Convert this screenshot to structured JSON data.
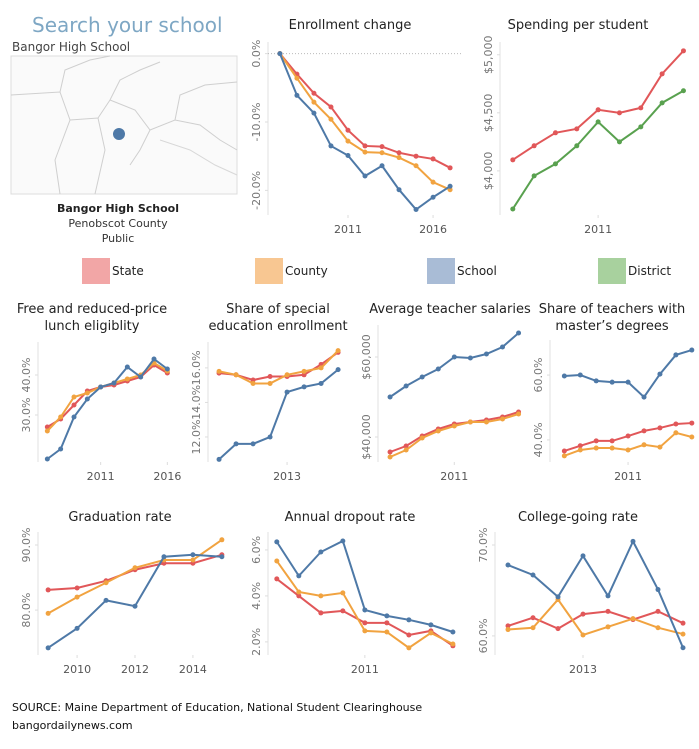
{
  "header": {
    "title": "Search your school",
    "school": "Bangor High School"
  },
  "map": {
    "school": "Bangor High School",
    "county": "Penobscot County",
    "type": "Public"
  },
  "legend": [
    {
      "name": "State",
      "color": "#e15759",
      "swatch": "#f2a6a6"
    },
    {
      "name": "County",
      "color": "#f1a340",
      "swatch": "#f8c792"
    },
    {
      "name": "School",
      "color": "#4e79a7",
      "swatch": "#a9bcd6"
    },
    {
      "name": "District",
      "color": "#59a14f",
      "swatch": "#a8d19e"
    }
  ],
  "chart_data": [
    {
      "type": "line",
      "title": "Enrollment change",
      "x": [
        2007,
        2008,
        2009,
        2010,
        2011,
        2012,
        2013,
        2014,
        2015,
        2016,
        2017
      ],
      "series": [
        {
          "name": "State",
          "values": [
            0,
            -3,
            -5.8,
            -7.8,
            -11.2,
            -13.5,
            -13.6,
            -14.5,
            -15,
            -15.4,
            -16.7
          ]
        },
        {
          "name": "County",
          "values": [
            0,
            -3.6,
            -7.1,
            -9.6,
            -12.8,
            -14.4,
            -14.5,
            -15.2,
            -16.4,
            -18.8,
            -19.9
          ]
        },
        {
          "name": "School",
          "values": [
            0,
            -6.1,
            -8.7,
            -13.5,
            -14.9,
            -17.9,
            -16.4,
            -19.9,
            -22.8,
            -21,
            -19.4
          ]
        }
      ],
      "xlim": [
        2006.3,
        2017.7
      ],
      "xticks": [
        2011,
        2016
      ],
      "ylim": [
        -23.6,
        1.7
      ],
      "yticks": [
        {
          "value": 0,
          "label": "0.0%"
        },
        {
          "value": -10,
          "label": "-10.0%"
        },
        {
          "value": -20,
          "label": "-20.0%"
        }
      ],
      "zero_line": true
    },
    {
      "type": "line",
      "title": "Spending per student",
      "x": [
        2007,
        2008,
        2009,
        2010,
        2011,
        2012,
        2013,
        2014,
        2015
      ],
      "series": [
        {
          "name": "State",
          "values": [
            4095,
            4216,
            4328,
            4362,
            4526,
            4500,
            4543,
            4836,
            5034
          ]
        },
        {
          "name": "District",
          "values": [
            3672,
            3957,
            4060,
            4216,
            4422,
            4250,
            4379,
            4586,
            4690
          ]
        }
      ],
      "xlim": [
        2006.4,
        2015.4
      ],
      "xticks": [
        2011
      ],
      "ylim": [
        3620,
        5110
      ],
      "yticks": [
        {
          "value": 5000,
          "label": "$5,000"
        },
        {
          "value": 4500,
          "label": "$4,500"
        },
        {
          "value": 4000,
          "label": "$4,000"
        }
      ]
    },
    {
      "type": "line",
      "title": "Free and reduced-price lunch eligiblity",
      "x": [
        2007,
        2008,
        2009,
        2010,
        2011,
        2012,
        2013,
        2014,
        2015,
        2016
      ],
      "series": [
        {
          "name": "State",
          "values": [
            27,
            29,
            32.5,
            36,
            37,
            37.5,
            38.5,
            39.5,
            42.5,
            40.5
          ]
        },
        {
          "name": "County",
          "values": [
            26,
            29.5,
            34.5,
            35.5,
            37,
            38,
            39,
            40,
            43,
            41
          ]
        },
        {
          "name": "School",
          "values": [
            19,
            21.5,
            29.5,
            34,
            37,
            38,
            42,
            39.5,
            44,
            41.5
          ]
        }
      ],
      "xlim": [
        2006.3,
        2016.8
      ],
      "xticks": [
        2011,
        2016
      ],
      "ylim": [
        18.25,
        48.25
      ],
      "yticks": [
        {
          "value": 40,
          "label": "40.0%"
        },
        {
          "value": 30,
          "label": "30.0%"
        }
      ]
    },
    {
      "type": "line",
      "title": "Share of special education enrollment",
      "x": [
        2009,
        2010,
        2011,
        2012,
        2013,
        2014,
        2015,
        2016
      ],
      "series": [
        {
          "name": "State",
          "values": [
            15.7,
            15.6,
            15.3,
            15.5,
            15.5,
            15.6,
            16.2,
            16.9
          ]
        },
        {
          "name": "County",
          "values": [
            15.8,
            15.6,
            15.1,
            15.1,
            15.6,
            15.8,
            16,
            17
          ]
        },
        {
          "name": "School",
          "values": [
            10.7,
            11.6,
            11.6,
            12,
            14.6,
            14.9,
            15.1,
            15.9
          ]
        }
      ],
      "xlim": [
        2008.35,
        2016.7
      ],
      "xticks": [
        2013
      ],
      "ylim": [
        10.55,
        17.5
      ],
      "yticks": [
        {
          "value": 16,
          "label": "16.0%"
        },
        {
          "value": 14,
          "label": "14.0%"
        },
        {
          "value": 12,
          "label": "12.0%"
        }
      ]
    },
    {
      "type": "line",
      "title": "Average teacher salaries",
      "x": [
        2007,
        2008,
        2009,
        2010,
        2011,
        2012,
        2013,
        2014,
        2015
      ],
      "series": [
        {
          "name": "State",
          "values": [
            36250,
            37750,
            40250,
            42000,
            43250,
            43750,
            44250,
            45000,
            46250
          ]
        },
        {
          "name": "County",
          "values": [
            35000,
            36750,
            39750,
            41500,
            42750,
            43750,
            43750,
            44500,
            45750
          ]
        },
        {
          "name": "School",
          "values": [
            50000,
            52750,
            55000,
            57000,
            60000,
            59750,
            60750,
            62500,
            66000
          ]
        }
      ],
      "xlim": [
        2006.25,
        2015.4
      ],
      "xticks": [
        2011
      ],
      "ylim": [
        33750,
        68000
      ],
      "yticks": [
        {
          "value": 60000,
          "label": "$60,000"
        },
        {
          "value": 40000,
          "label": "$40,000"
        }
      ]
    },
    {
      "type": "line",
      "title": "Share of teachers with master’s degrees",
      "x": [
        2007,
        2008,
        2009,
        2010,
        2011,
        2012,
        2013,
        2014,
        2015
      ],
      "series": [
        {
          "name": "State",
          "values": [
            36.6,
            38.2,
            39.7,
            39.7,
            41.2,
            42.8,
            43.7,
            44.9,
            45.2
          ]
        },
        {
          "name": "County",
          "values": [
            35.1,
            36.9,
            37.5,
            37.5,
            36.9,
            38.5,
            37.8,
            42.2,
            40.9
          ]
        },
        {
          "name": "School",
          "values": [
            59.7,
            60,
            58.2,
            57.8,
            57.8,
            53.2,
            60.3,
            66.2,
            67.7
          ]
        }
      ],
      "xlim": [
        2006.1,
        2015.2
      ],
      "xticks": [
        2011
      ],
      "ylim": [
        33.2,
        70.8
      ],
      "yticks": [
        {
          "value": 60,
          "label": "60.0%"
        },
        {
          "value": 40,
          "label": "40.0%"
        }
      ]
    },
    {
      "type": "line",
      "title": "Graduation rate",
      "x": [
        2009,
        2010,
        2011,
        2012,
        2013,
        2014,
        2015
      ],
      "series": [
        {
          "name": "State",
          "values": [
            83.1,
            83.4,
            84.5,
            86.2,
            87.2,
            87.2,
            88.5
          ]
        },
        {
          "name": "County",
          "values": [
            79.5,
            82,
            84.2,
            86.5,
            87.7,
            87.7,
            90.8
          ]
        },
        {
          "name": "School",
          "values": [
            74.2,
            77.2,
            81.5,
            80.6,
            88.2,
            88.5,
            88.2
          ]
        }
      ],
      "xlim": [
        2008.65,
        2015.35
      ],
      "xticks": [
        2010,
        2012,
        2014
      ],
      "ylim": [
        73.1,
        92
      ],
      "yticks": [
        {
          "value": 90,
          "label": "90.0%"
        },
        {
          "value": 80,
          "label": "80.0%"
        }
      ]
    },
    {
      "type": "line",
      "title": "Annual dropout rate",
      "x": [
        2007,
        2008,
        2009,
        2010,
        2011,
        2012,
        2013,
        2014,
        2015
      ],
      "series": [
        {
          "name": "State",
          "values": [
            4.74,
            4,
            3.26,
            3.35,
            2.83,
            2.83,
            2.3,
            2.48,
            1.83
          ]
        },
        {
          "name": "County",
          "values": [
            5.52,
            4.17,
            4,
            4.13,
            2.48,
            2.43,
            1.74,
            2.39,
            1.91
          ]
        },
        {
          "name": "School",
          "values": [
            6.35,
            4.87,
            5.91,
            6.39,
            3.39,
            3.13,
            2.96,
            2.74,
            2.43
          ]
        }
      ],
      "xlim": [
        2006.6,
        2015.55
      ],
      "xticks": [
        2011
      ],
      "ylim": [
        1.43,
        6.78
      ],
      "yticks": [
        {
          "value": 6,
          "label": "6.0%"
        },
        {
          "value": 4,
          "label": "4.0%"
        },
        {
          "value": 2,
          "label": "2.0%"
        }
      ]
    },
    {
      "type": "line",
      "title": "College-going rate",
      "x": [
        2010,
        2011,
        2012,
        2013,
        2014,
        2015,
        2016,
        2017
      ],
      "series": [
        {
          "name": "State",
          "values": [
            61.1,
            62,
            60.8,
            62.4,
            62.7,
            61.8,
            62.7,
            61.4
          ]
        },
        {
          "name": "County",
          "values": [
            60.7,
            60.9,
            64,
            60.1,
            61,
            61.9,
            60.9,
            60.2
          ]
        },
        {
          "name": "School",
          "values": [
            67.8,
            66.7,
            64.3,
            68.8,
            64.4,
            70.4,
            65.1,
            58.7
          ]
        }
      ],
      "xlim": [
        2009.48,
        2017.48
      ],
      "xticks": [
        2013
      ],
      "ylim": [
        57.9,
        71.43
      ],
      "yticks": [
        {
          "value": 70,
          "label": "70.0%"
        },
        {
          "value": 60,
          "label": "60.0%"
        }
      ]
    }
  ],
  "footer": {
    "source": "SOURCE: Maine Department of Education, National Student Clearinghouse",
    "site": "bangordailynews.com"
  }
}
